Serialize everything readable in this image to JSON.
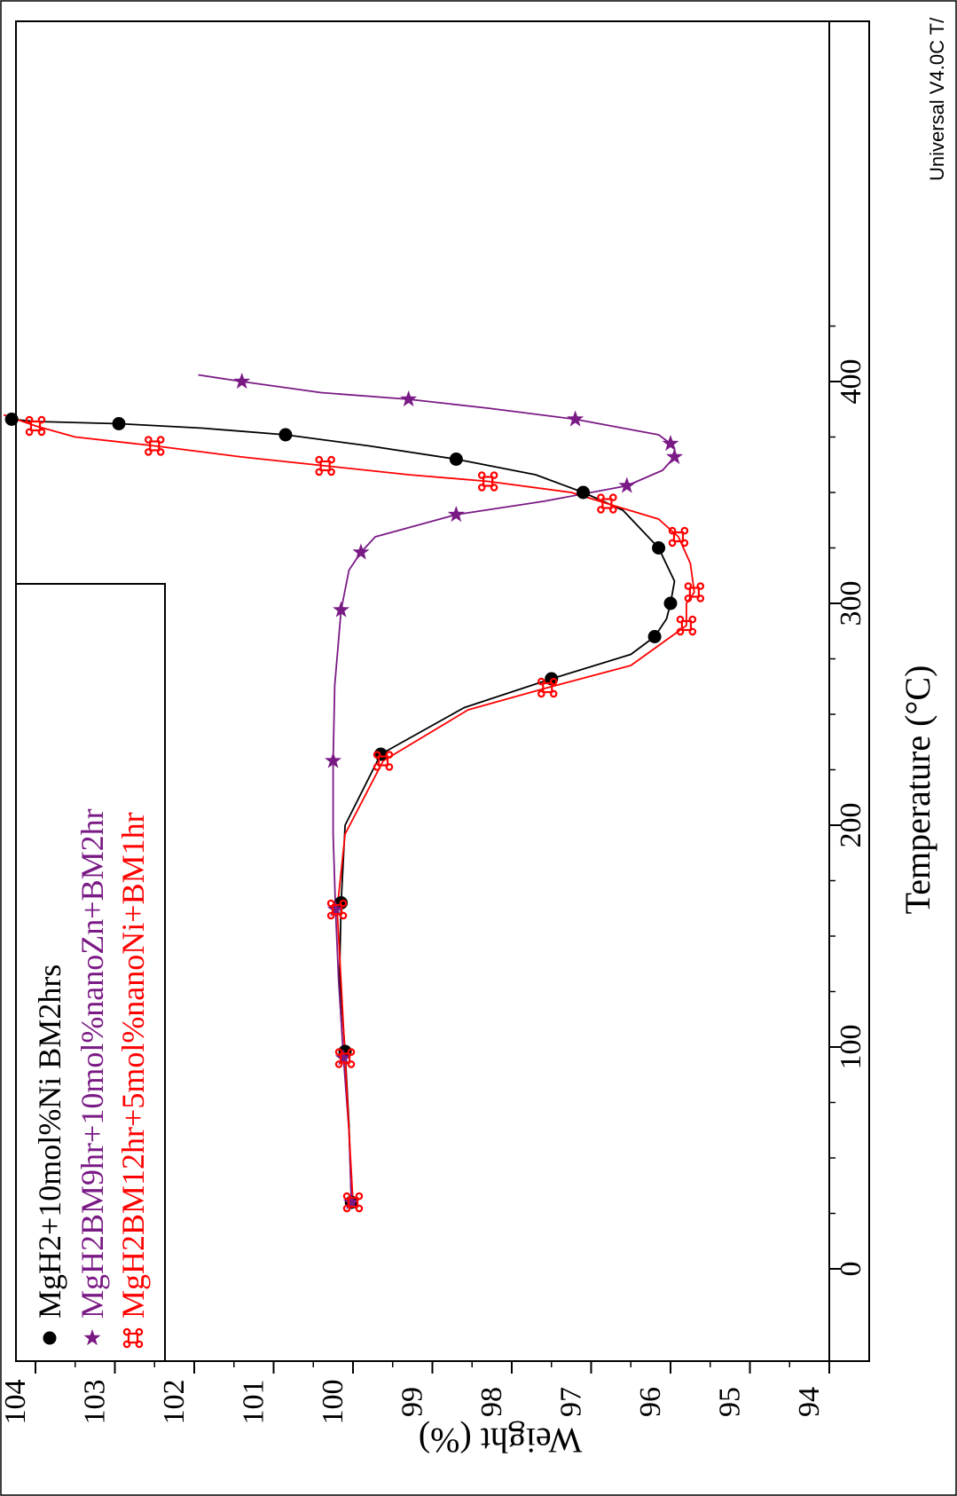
{
  "chart_data": {
    "type": "line",
    "orientation": "rotated-90-cw",
    "xlabel": "Temperature (°C)",
    "ylabel": "Weight (%)",
    "xlim": [
      0,
      425
    ],
    "ylim": [
      94,
      104.4
    ],
    "xticks": [
      0,
      100,
      200,
      300,
      400
    ],
    "yticks": [
      94,
      95,
      96,
      97,
      98,
      99,
      100,
      101,
      102,
      103,
      104
    ],
    "grid": false,
    "legend_position": "top-left",
    "instrument_note": "Universal V4.0C T/",
    "series": [
      {
        "name": "MgH2+10mol%Ni BM2hrs",
        "color": "#000000",
        "marker": "circle",
        "x": [
          30,
          65,
          98,
          132,
          165,
          200,
          232,
          253,
          266,
          277,
          285,
          293,
          300,
          310,
          325,
          342,
          350,
          358,
          365,
          371,
          376,
          379,
          381,
          382,
          383
        ],
        "y": [
          100.02,
          100.05,
          100.1,
          100.17,
          100.15,
          100.1,
          99.65,
          98.6,
          97.5,
          96.5,
          96.2,
          96.05,
          96.0,
          95.95,
          96.15,
          96.6,
          97.1,
          97.7,
          98.7,
          99.8,
          100.85,
          101.9,
          102.95,
          104.0,
          104.3
        ]
      },
      {
        "name": "MgH2BM9hr+10mol%nanoZn+BM2hr",
        "color": "#7a1a85",
        "marker": "star",
        "x": [
          30,
          62,
          95,
          129,
          162,
          196,
          229,
          263,
          297,
          315,
          323,
          330,
          340,
          346,
          353,
          360,
          366,
          370,
          372,
          376,
          383,
          388,
          392,
          395,
          400,
          403
        ],
        "y": [
          100.02,
          100.05,
          100.12,
          100.18,
          100.22,
          100.25,
          100.25,
          100.23,
          100.15,
          100.05,
          99.9,
          99.72,
          98.7,
          97.6,
          96.55,
          96.1,
          95.95,
          95.95,
          96.0,
          96.15,
          97.2,
          98.3,
          99.3,
          100.4,
          101.4,
          101.95
        ]
      },
      {
        "name": "MgH2BM12hr+5mol%nanoNi+BM1hr",
        "color": "#ff0000",
        "marker": "cmd",
        "x": [
          30,
          62,
          95,
          129,
          162,
          196,
          229,
          252,
          262,
          272,
          290,
          300,
          305,
          318,
          330,
          338,
          345,
          350,
          355,
          358,
          362,
          366,
          371,
          375,
          380,
          385
        ],
        "y": [
          100.0,
          100.05,
          100.1,
          100.15,
          100.2,
          100.1,
          99.62,
          98.55,
          97.55,
          96.5,
          95.8,
          95.8,
          95.7,
          95.75,
          95.9,
          96.15,
          96.8,
          97.25,
          98.3,
          99.3,
          100.35,
          101.4,
          102.5,
          103.5,
          104.0,
          104.4
        ]
      }
    ]
  }
}
